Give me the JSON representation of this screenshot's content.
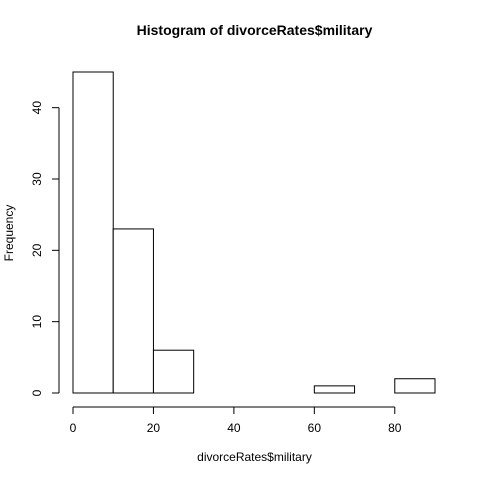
{
  "chart_data": {
    "type": "bar",
    "title": "Histogram of divorceRates$military",
    "xlabel": "divorceRates$military",
    "ylabel": "Frequency",
    "bins": [
      {
        "from": 0,
        "to": 10,
        "count": 45
      },
      {
        "from": 10,
        "to": 20,
        "count": 23
      },
      {
        "from": 20,
        "to": 30,
        "count": 6
      },
      {
        "from": 30,
        "to": 40,
        "count": 0
      },
      {
        "from": 40,
        "to": 50,
        "count": 0
      },
      {
        "from": 50,
        "to": 60,
        "count": 0
      },
      {
        "from": 60,
        "to": 70,
        "count": 1
      },
      {
        "from": 70,
        "to": 80,
        "count": 0
      },
      {
        "from": 80,
        "to": 90,
        "count": 2
      }
    ],
    "xlim": [
      0,
      90
    ],
    "ylim": [
      0,
      45
    ],
    "xticks": [
      0,
      20,
      40,
      60,
      80
    ],
    "yticks": [
      0,
      10,
      20,
      30,
      40
    ],
    "grid": false,
    "legend": "none"
  }
}
